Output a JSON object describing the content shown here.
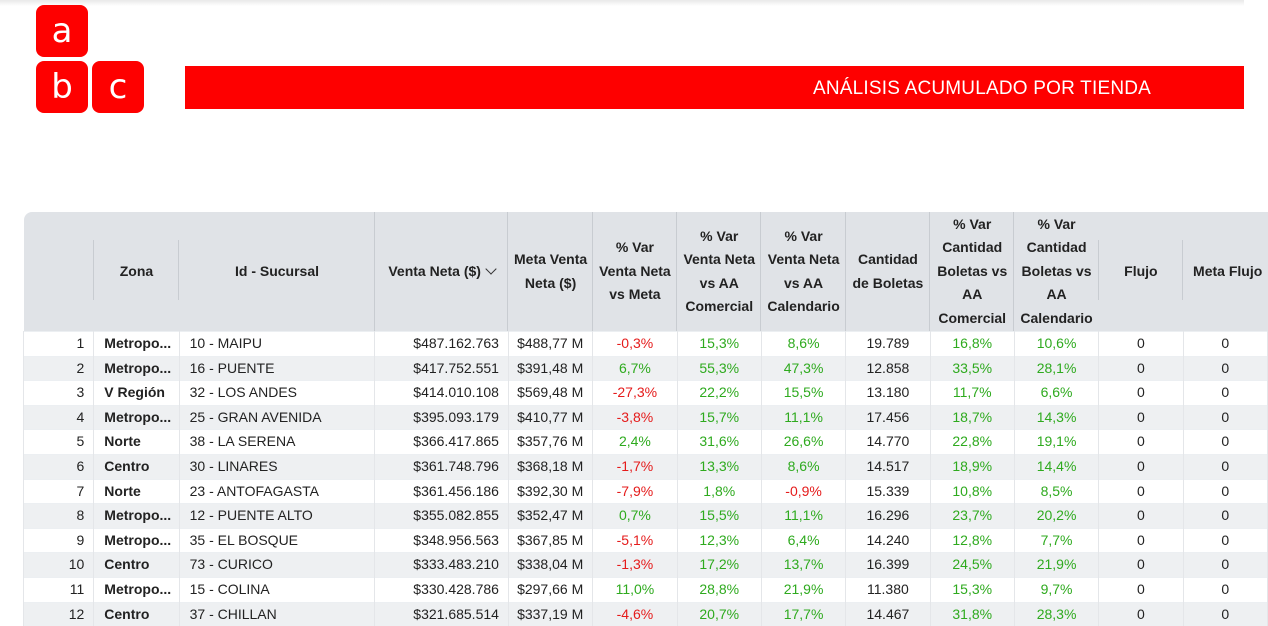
{
  "logo": {
    "letters": [
      "a",
      "b",
      "c"
    ]
  },
  "banner": {
    "title": "ANÁLISIS ACUMULADO POR TIENDA"
  },
  "table": {
    "headers": {
      "zona": "Zona",
      "sucursal": "Id - Sucursal",
      "venta_neta": "Venta Neta ($)",
      "meta_venta": "Meta Venta Neta ($)",
      "var_meta": "% Var Venta Neta vs Meta",
      "var_aa_com": "% Var Venta Neta vs AA Comercial",
      "var_aa_cal": "% Var Venta Neta vs AA Calendario",
      "boletas": "Cantidad de Boletas",
      "bol_aa_com": "% Var Cantidad Boletas vs AA Comercial",
      "bol_aa_cal": "% Var Cantidad Boletas vs AA Calendario",
      "flujo": "Flujo",
      "meta_flujo": "Meta Flujo"
    },
    "rows": [
      {
        "n": "1",
        "zona": "Metropo...",
        "suc": "10 - MAIPU",
        "venta": "$487.162.763",
        "meta": "$488,77 M",
        "vmeta": "-0,3%",
        "vcom": "15,3%",
        "vcal": "8,6%",
        "bol": "19.789",
        "bcom": "16,8%",
        "bcal": "10,6%",
        "flujo": "0",
        "mflujo": "0"
      },
      {
        "n": "2",
        "zona": "Metropo...",
        "suc": "16 - PUENTE",
        "venta": "$417.752.551",
        "meta": "$391,48 M",
        "vmeta": "6,7%",
        "vcom": "55,3%",
        "vcal": "47,3%",
        "bol": "12.858",
        "bcom": "33,5%",
        "bcal": "28,1%",
        "flujo": "0",
        "mflujo": "0"
      },
      {
        "n": "3",
        "zona": "V Región",
        "suc": "32 - LOS ANDES",
        "venta": "$414.010.108",
        "meta": "$569,48 M",
        "vmeta": "-27,3%",
        "vcom": "22,2%",
        "vcal": "15,5%",
        "bol": "13.180",
        "bcom": "11,7%",
        "bcal": "6,6%",
        "flujo": "0",
        "mflujo": "0"
      },
      {
        "n": "4",
        "zona": "Metropo...",
        "suc": "25 - GRAN AVENIDA",
        "venta": "$395.093.179",
        "meta": "$410,77 M",
        "vmeta": "-3,8%",
        "vcom": "15,7%",
        "vcal": "11,1%",
        "bol": "17.456",
        "bcom": "18,7%",
        "bcal": "14,3%",
        "flujo": "0",
        "mflujo": "0"
      },
      {
        "n": "5",
        "zona": "Norte",
        "suc": "38 - LA SERENA",
        "venta": "$366.417.865",
        "meta": "$357,76 M",
        "vmeta": "2,4%",
        "vcom": "31,6%",
        "vcal": "26,6%",
        "bol": "14.770",
        "bcom": "22,8%",
        "bcal": "19,1%",
        "flujo": "0",
        "mflujo": "0"
      },
      {
        "n": "6",
        "zona": "Centro",
        "suc": "30 - LINARES",
        "venta": "$361.748.796",
        "meta": "$368,18 M",
        "vmeta": "-1,7%",
        "vcom": "13,3%",
        "vcal": "8,6%",
        "bol": "14.517",
        "bcom": "18,9%",
        "bcal": "14,4%",
        "flujo": "0",
        "mflujo": "0"
      },
      {
        "n": "7",
        "zona": "Norte",
        "suc": "23 - ANTOFAGASTA",
        "venta": "$361.456.186",
        "meta": "$392,30 M",
        "vmeta": "-7,9%",
        "vcom": "1,8%",
        "vcal": "-0,9%",
        "bol": "15.339",
        "bcom": "10,8%",
        "bcal": "8,5%",
        "flujo": "0",
        "mflujo": "0"
      },
      {
        "n": "8",
        "zona": "Metropo...",
        "suc": "12 - PUENTE ALTO",
        "venta": "$355.082.855",
        "meta": "$352,47 M",
        "vmeta": "0,7%",
        "vcom": "15,5%",
        "vcal": "11,1%",
        "bol": "16.296",
        "bcom": "23,7%",
        "bcal": "20,2%",
        "flujo": "0",
        "mflujo": "0"
      },
      {
        "n": "9",
        "zona": "Metropo...",
        "suc": "35 - EL BOSQUE",
        "venta": "$348.956.563",
        "meta": "$367,85 M",
        "vmeta": "-5,1%",
        "vcom": "12,3%",
        "vcal": "6,4%",
        "bol": "14.240",
        "bcom": "12,8%",
        "bcal": "7,7%",
        "flujo": "0",
        "mflujo": "0"
      },
      {
        "n": "10",
        "zona": "Centro",
        "suc": "73 - CURICO",
        "venta": "$333.483.210",
        "meta": "$338,04 M",
        "vmeta": "-1,3%",
        "vcom": "17,2%",
        "vcal": "13,7%",
        "bol": "16.399",
        "bcom": "24,5%",
        "bcal": "21,9%",
        "flujo": "0",
        "mflujo": "0"
      },
      {
        "n": "11",
        "zona": "Metropo...",
        "suc": "15 - COLINA",
        "venta": "$330.428.786",
        "meta": "$297,66 M",
        "vmeta": "11,0%",
        "vcom": "28,8%",
        "vcal": "21,9%",
        "bol": "11.380",
        "bcom": "15,3%",
        "bcal": "9,7%",
        "flujo": "0",
        "mflujo": "0"
      },
      {
        "n": "12",
        "zona": "Centro",
        "suc": "37 - CHILLAN",
        "venta": "$321.685.514",
        "meta": "$337,19 M",
        "vmeta": "-4,6%",
        "vcom": "20,7%",
        "vcal": "17,7%",
        "bol": "14.467",
        "bcom": "31,8%",
        "bcal": "28,3%",
        "flujo": "0",
        "mflujo": "0"
      }
    ]
  },
  "colors": {
    "brand_red": "#fe0000",
    "positive": "#2eaa1e",
    "negative": "#e51b1b",
    "header_bg": "#e0e3e7"
  }
}
